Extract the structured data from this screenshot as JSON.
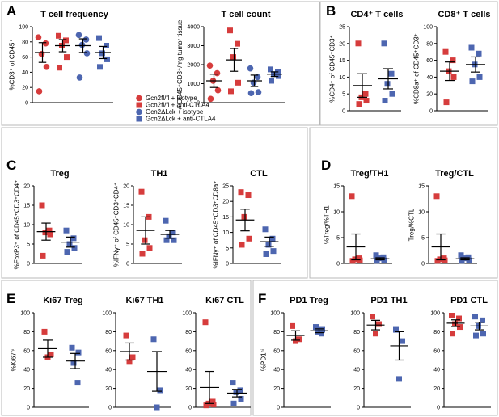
{
  "colors": {
    "isotype": "#d63c3c",
    "anti_ctla4": "#4d66b0",
    "frame": "#b8b8b8"
  },
  "panel_labels": [
    "A",
    "B",
    "C",
    "D",
    "E",
    "F"
  ],
  "legend": [
    {
      "label": "Gcn2fl/fl + isotype",
      "marker": "circle",
      "color": "#d63c3c"
    },
    {
      "label": "Gcn2fl/fl + anti-CTLA4",
      "marker": "square",
      "color": "#d63c3c"
    },
    {
      "label": "Gcn2ΔLck + isotype",
      "marker": "circle",
      "color": "#4d66b0"
    },
    {
      "label": "Gcn2ΔLck + anti-CTLA4",
      "marker": "square",
      "color": "#4d66b0"
    }
  ],
  "chart_data": [
    {
      "type": "scatter",
      "title": "T cell frequency",
      "ylabel": "%CD3⁺ of CD45⁺",
      "ylim": [
        0,
        100
      ],
      "yticks": [
        0,
        20,
        40,
        60,
        80,
        100
      ],
      "series": [
        {
          "group": "Gcn2fl/fl + isotype",
          "marker": "circle",
          "color": "#d63c3c",
          "values": [
            86,
            78,
            64,
            47,
            15
          ],
          "mean": 66,
          "sem": 13
        },
        {
          "group": "Gcn2fl/fl + anti-CTLA4",
          "marker": "square",
          "color": "#d63c3c",
          "values": [
            88,
            82,
            75,
            60,
            46
          ],
          "mean": 75,
          "sem": 8
        },
        {
          "group": "Gcn2ΔLck + isotype",
          "marker": "circle",
          "color": "#4d66b0",
          "values": [
            89,
            83,
            76,
            65,
            33
          ],
          "mean": 75,
          "sem": 9
        },
        {
          "group": "Gcn2ΔLck + anti-CTLA4",
          "marker": "square",
          "color": "#4d66b0",
          "values": [
            85,
            75,
            65,
            57,
            47
          ],
          "mean": 66,
          "sem": 8
        }
      ]
    },
    {
      "type": "scatter",
      "title": "T cell count",
      "ylabel": "# CD45⁺CD3⁺/mg tumor tissue",
      "ylim": [
        0,
        4000
      ],
      "yticks": [
        0,
        1000,
        2000,
        3000,
        4000
      ],
      "series": [
        {
          "group": "Gcn2fl/fl + isotype",
          "marker": "circle",
          "color": "#d63c3c",
          "values": [
            1950,
            1550,
            1150,
            650,
            200
          ],
          "mean": 1150,
          "sem": 350
        },
        {
          "group": "Gcn2fl/fl + anti-CTLA4",
          "marker": "square",
          "color": "#d63c3c",
          "values": [
            3800,
            3100,
            2400,
            1050,
            600
          ],
          "mean": 2250,
          "sem": 600
        },
        {
          "group": "Gcn2ΔLck + isotype",
          "marker": "circle",
          "color": "#4d66b0",
          "values": [
            1800,
            1350,
            1050,
            550,
            500
          ],
          "mean": 1150,
          "sem": 300
        },
        {
          "group": "Gcn2ΔLck + anti-CTLA4",
          "marker": "square",
          "color": "#4d66b0",
          "values": [
            1750,
            1600,
            1500,
            1400,
            1150
          ],
          "mean": 1500,
          "sem": 120
        }
      ]
    },
    {
      "type": "scatter",
      "title": "CD4⁺ T cells",
      "ylabel": "%CD4⁺ of CD45⁺CD3⁺",
      "ylim": [
        0,
        25
      ],
      "yticks": [
        0,
        5,
        10,
        15,
        20,
        25
      ],
      "series": [
        {
          "group": "Gcn2fl/fl + anti-CTLA4",
          "marker": "square",
          "color": "#d63c3c",
          "values": [
            20,
            5,
            4,
            3,
            2
          ],
          "mean": 7.5,
          "sem": 3.5
        },
        {
          "group": "Gcn2ΔLck + anti-CTLA4",
          "marker": "square",
          "color": "#4d66b0",
          "values": [
            20,
            11,
            8,
            5,
            3
          ],
          "mean": 9.5,
          "sem": 3
        }
      ]
    },
    {
      "type": "scatter",
      "title": "CD8⁺ T cells",
      "ylabel": "%CD8a⁺ of CD45⁺CD3⁺",
      "ylim": [
        0,
        100
      ],
      "yticks": [
        0,
        20,
        40,
        60,
        80,
        100
      ],
      "series": [
        {
          "group": "Gcn2fl/fl + anti-CTLA4",
          "marker": "square",
          "color": "#d63c3c",
          "values": [
            70,
            60,
            47,
            40,
            10
          ],
          "mean": 47,
          "sem": 11
        },
        {
          "group": "Gcn2ΔLck + anti-CTLA4",
          "marker": "square",
          "color": "#4d66b0",
          "values": [
            75,
            68,
            55,
            40,
            35
          ],
          "mean": 55,
          "sem": 9
        }
      ]
    },
    {
      "type": "scatter",
      "title": "Treg",
      "ylabel": "%FoxP3⁺ of CD45⁺CD3⁺CD4⁺",
      "ylim": [
        0,
        20
      ],
      "yticks": [
        0,
        5,
        10,
        15,
        20
      ],
      "series": [
        {
          "group": "Gcn2fl/fl + anti-CTLA4",
          "marker": "square",
          "color": "#d63c3c",
          "values": [
            15,
            8.5,
            8,
            7.5,
            2
          ],
          "mean": 8.2,
          "sem": 2.2
        },
        {
          "group": "Gcn2ΔLck + anti-CTLA4",
          "marker": "square",
          "color": "#4d66b0",
          "values": [
            8.5,
            6.5,
            5,
            4,
            3
          ],
          "mean": 5.5,
          "sem": 1.3
        }
      ]
    },
    {
      "type": "scatter",
      "title": "TH1",
      "ylabel": "%IFNγ⁺ of CD45⁺CD3⁺CD4⁺",
      "ylim": [
        0,
        20
      ],
      "yticks": [
        0,
        5,
        10,
        15,
        20
      ],
      "series": [
        {
          "group": "Gcn2fl/fl + anti-CTLA4",
          "marker": "square",
          "color": "#d63c3c",
          "values": [
            18.5,
            12,
            6,
            4,
            2.5
          ],
          "mean": 8.5,
          "sem": 3.5
        },
        {
          "group": "Gcn2ΔLck + anti-CTLA4",
          "marker": "square",
          "color": "#4d66b0",
          "values": [
            11,
            8,
            7,
            6,
            6
          ],
          "mean": 7.5,
          "sem": 1
        }
      ]
    },
    {
      "type": "scatter",
      "title": "CTL",
      "ylabel": "%IFNγ⁺ of CD45⁺CD3⁺CD8a⁺",
      "ylim": [
        0,
        25
      ],
      "yticks": [
        0,
        5,
        10,
        15,
        20,
        25
      ],
      "series": [
        {
          "group": "Gcn2fl/fl + anti-CTLA4",
          "marker": "square",
          "color": "#d63c3c",
          "values": [
            23,
            22,
            15,
            8,
            6
          ],
          "mean": 14,
          "sem": 3.5
        },
        {
          "group": "Gcn2ΔLck + anti-CTLA4",
          "marker": "square",
          "color": "#4d66b0",
          "values": [
            11,
            8,
            6,
            4,
            3
          ],
          "mean": 7,
          "sem": 1.5
        }
      ]
    },
    {
      "type": "scatter",
      "title": "Treg/TH1",
      "ylabel": "%Treg/%TH1",
      "ylim": [
        0,
        15
      ],
      "yticks": [
        0,
        5,
        10,
        15
      ],
      "series": [
        {
          "group": "Gcn2fl/fl + anti-CTLA4",
          "marker": "square",
          "color": "#d63c3c",
          "values": [
            13,
            1,
            0.8,
            0.6,
            0.5
          ],
          "mean": 3.2,
          "sem": 2.5
        },
        {
          "group": "Gcn2ΔLck + anti-CTLA4",
          "marker": "square",
          "color": "#4d66b0",
          "values": [
            1.6,
            1.2,
            1,
            0.6,
            0.5
          ],
          "mean": 0.9,
          "sem": 0.2
        }
      ]
    },
    {
      "type": "scatter",
      "title": "Treg/CTL",
      "ylabel": "Treg/%CTL",
      "ylim": [
        0,
        15
      ],
      "yticks": [
        0,
        5,
        10,
        15
      ],
      "series": [
        {
          "group": "Gcn2fl/fl + anti-CTLA4",
          "marker": "square",
          "color": "#d63c3c",
          "values": [
            13,
            1,
            0.8,
            0.6,
            0.5
          ],
          "mean": 3.2,
          "sem": 2.5
        },
        {
          "group": "Gcn2ΔLck + anti-CTLA4",
          "marker": "square",
          "color": "#4d66b0",
          "values": [
            1.6,
            1.2,
            1,
            0.6,
            0.5
          ],
          "mean": 0.9,
          "sem": 0.2
        }
      ]
    },
    {
      "type": "scatter",
      "title": "Ki67 Treg",
      "ylabel": "%Ki67ʰⁱ",
      "ylim": [
        0,
        100
      ],
      "yticks": [
        0,
        20,
        40,
        60,
        80,
        100
      ],
      "series": [
        {
          "group": "Gcn2fl/fl + anti-CTLA4",
          "marker": "square",
          "color": "#d63c3c",
          "values": [
            80,
            56,
            53
          ],
          "mean": 62,
          "sem": 9
        },
        {
          "group": "Gcn2ΔLck + anti-CTLA4",
          "marker": "square",
          "color": "#4d66b0",
          "values": [
            63,
            58,
            47,
            26
          ],
          "mean": 49,
          "sem": 8
        }
      ]
    },
    {
      "type": "scatter",
      "title": "Ki67 TH1",
      "ylabel": "",
      "ylim": [
        0,
        100
      ],
      "yticks": [
        0,
        20,
        40,
        60,
        80,
        100
      ],
      "series": [
        {
          "group": "Gcn2fl/fl + anti-CTLA4",
          "marker": "square",
          "color": "#d63c3c",
          "values": [
            76,
            53,
            48
          ],
          "mean": 59,
          "sem": 9
        },
        {
          "group": "Gcn2ΔLck + anti-CTLA4",
          "marker": "square",
          "color": "#4d66b0",
          "values": [
            72,
            18,
            0
          ],
          "mean": 38,
          "sem": 21
        }
      ]
    },
    {
      "type": "scatter",
      "title": "Ki67 CTL",
      "ylabel": "",
      "ylim": [
        0,
        100
      ],
      "yticks": [
        0,
        20,
        40,
        60,
        80,
        100
      ],
      "series": [
        {
          "group": "Gcn2fl/fl + anti-CTLA4",
          "marker": "square",
          "color": "#d63c3c",
          "values": [
            90,
            6,
            4,
            3,
            2
          ],
          "mean": 21,
          "sem": 17
        },
        {
          "group": "Gcn2ΔLck + anti-CTLA4",
          "marker": "square",
          "color": "#4d66b0",
          "values": [
            26,
            18,
            16,
            9,
            4
          ],
          "mean": 15,
          "sem": 4
        }
      ]
    },
    {
      "type": "scatter",
      "title": "PD1 Treg",
      "ylabel": "%PD1ʰⁱ",
      "ylim": [
        0,
        100
      ],
      "yticks": [
        0,
        20,
        40,
        60,
        80,
        100
      ],
      "series": [
        {
          "group": "Gcn2fl/fl + anti-CTLA4",
          "marker": "square",
          "color": "#d63c3c",
          "values": [
            86,
            72,
            70
          ],
          "mean": 76,
          "sem": 5
        },
        {
          "group": "Gcn2ΔLck + anti-CTLA4",
          "marker": "square",
          "color": "#4d66b0",
          "values": [
            85,
            82,
            80,
            78
          ],
          "mean": 81,
          "sem": 2
        }
      ]
    },
    {
      "type": "scatter",
      "title": "PD1 TH1",
      "ylabel": "",
      "ylim": [
        0,
        100
      ],
      "yticks": [
        0,
        20,
        40,
        60,
        80,
        100
      ],
      "series": [
        {
          "group": "Gcn2fl/fl + anti-CTLA4",
          "marker": "square",
          "color": "#d63c3c",
          "values": [
            96,
            88,
            78
          ],
          "mean": 87,
          "sem": 5
        },
        {
          "group": "Gcn2ΔLck + anti-CTLA4",
          "marker": "square",
          "color": "#4d66b0",
          "values": [
            82,
            70,
            30
          ],
          "mean": 65,
          "sem": 15
        }
      ]
    },
    {
      "type": "scatter",
      "title": "PD1 CTL",
      "ylabel": "",
      "ylim": [
        0,
        100
      ],
      "yticks": [
        0,
        20,
        40,
        60,
        80,
        100
      ],
      "series": [
        {
          "group": "Gcn2fl/fl + anti-CTLA4",
          "marker": "square",
          "color": "#d63c3c",
          "values": [
            97,
            94,
            88,
            85,
            78
          ],
          "mean": 89,
          "sem": 3.5
        },
        {
          "group": "Gcn2ΔLck + anti-CTLA4",
          "marker": "square",
          "color": "#4d66b0",
          "values": [
            96,
            92,
            86,
            78,
            76
          ],
          "mean": 86,
          "sem": 4
        }
      ]
    }
  ]
}
